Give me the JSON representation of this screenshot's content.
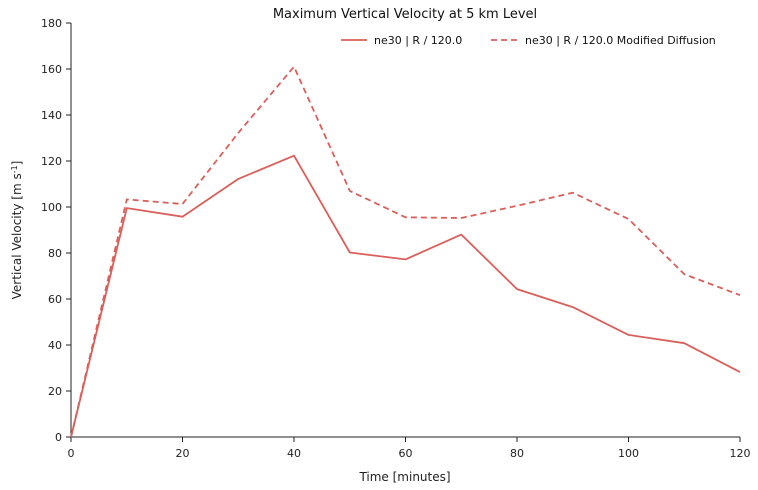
{
  "chart_data": {
    "type": "line",
    "title": "Maximum Vertical Velocity at 5 km Level",
    "xlabel": "Time [minutes]",
    "ylabel_main": "Vertical Velocity [m s",
    "ylabel_sup": "-1",
    "ylabel_tail": "]",
    "xlim": [
      0,
      120
    ],
    "ylim": [
      0,
      180
    ],
    "xticks": [
      0,
      20,
      40,
      60,
      80,
      100,
      120
    ],
    "yticks": [
      0,
      20,
      40,
      60,
      80,
      100,
      120,
      140,
      160,
      180
    ],
    "grid": false,
    "legend_position": "top-right",
    "x": [
      0,
      10,
      20,
      30,
      40,
      50,
      60,
      70,
      80,
      90,
      100,
      110,
      120
    ],
    "series": [
      {
        "name": "ne30 | R / 120.0",
        "style": "solid",
        "color": "#d9605a",
        "values": [
          0,
          99.5,
          95.8,
          112.2,
          122.3,
          80.2,
          77.2,
          88.0,
          64.3,
          56.5,
          44.4,
          40.8,
          28.2
        ]
      },
      {
        "name": "ne30 | R / 120.0 Modified Diffusion",
        "style": "dashed",
        "color": "#d9605a",
        "values": [
          0,
          103.3,
          101.3,
          132.2,
          161.0,
          107.0,
          95.5,
          95.2,
          100.5,
          106.2,
          94.8,
          70.8,
          61.7
        ]
      }
    ]
  }
}
